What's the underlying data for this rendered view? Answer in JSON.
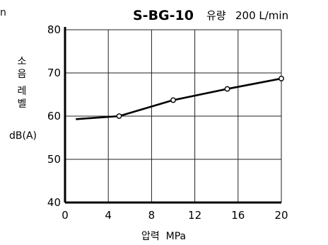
{
  "edge_fragment": "n",
  "chart_data": {
    "type": "line",
    "title": "S-BG-10",
    "subtitle_label": "유량",
    "subtitle_value": "200 L/min",
    "xlabel": "압력  MPa",
    "ylabel_lines": [
      "소",
      "음",
      "레",
      "벨"
    ],
    "ylabel_unit": "dB(A)",
    "xlim": [
      0,
      20
    ],
    "ylim": [
      40,
      80
    ],
    "xticks": [
      0,
      4,
      8,
      12,
      16,
      20
    ],
    "yticks": [
      40,
      50,
      60,
      70,
      80
    ],
    "grid": true,
    "series": [
      {
        "x": [
          1,
          5,
          10,
          15,
          20
        ],
        "y": [
          59.3,
          60,
          63.7,
          66.3,
          68.7
        ],
        "markers": [
          false,
          true,
          true,
          true,
          true
        ]
      }
    ]
  }
}
